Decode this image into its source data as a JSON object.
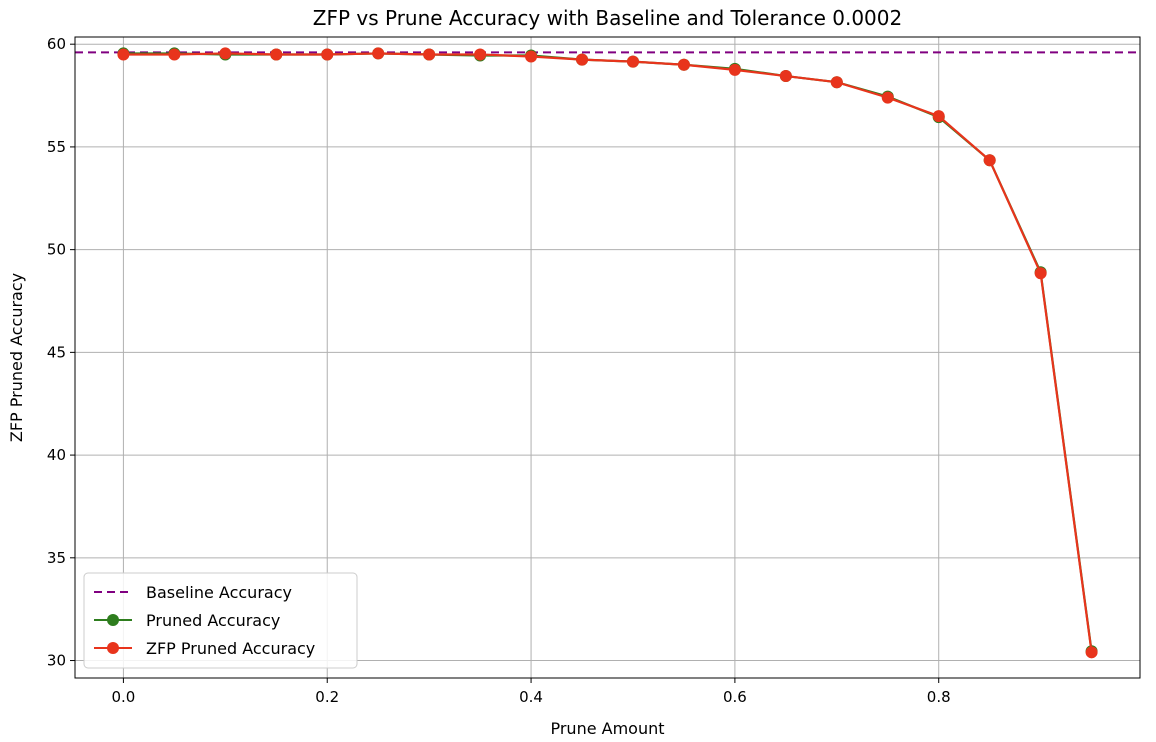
{
  "chart_data": {
    "type": "line",
    "title": "ZFP vs Prune Accuracy with Baseline and Tolerance 0.0002",
    "xlabel": "Prune Amount",
    "ylabel": "ZFP Pruned Accuracy",
    "xlim": [
      -0.0475,
      0.9975
    ],
    "ylim": [
      29.15,
      60.35
    ],
    "xticks": [
      0.0,
      0.2,
      0.4,
      0.6,
      0.8
    ],
    "xtick_labels": [
      "0.0",
      "0.2",
      "0.4",
      "0.6",
      "0.8"
    ],
    "yticks": [
      30,
      35,
      40,
      45,
      50,
      55,
      60
    ],
    "ytick_labels": [
      "30",
      "35",
      "40",
      "45",
      "50",
      "55",
      "60"
    ],
    "grid": true,
    "legend_position": "lower-left",
    "x": [
      0.0,
      0.05,
      0.1,
      0.15,
      0.2,
      0.25,
      0.3,
      0.35,
      0.4,
      0.45,
      0.5,
      0.55,
      0.6,
      0.65,
      0.7,
      0.75,
      0.8,
      0.85,
      0.9,
      0.95
    ],
    "baseline": {
      "name": "Baseline Accuracy",
      "value": 59.6,
      "color": "#800080",
      "style": "dashed"
    },
    "series": [
      {
        "name": "Pruned Accuracy",
        "color": "#2e7d1e",
        "values": [
          59.55,
          59.55,
          59.5,
          59.5,
          59.5,
          59.55,
          59.5,
          59.45,
          59.45,
          59.25,
          59.15,
          59.0,
          58.8,
          58.45,
          58.15,
          57.45,
          56.45,
          54.35,
          48.9,
          30.45
        ]
      },
      {
        "name": "ZFP Pruned Accuracy",
        "color": "#e8341c",
        "values": [
          59.5,
          59.5,
          59.55,
          59.5,
          59.5,
          59.55,
          59.5,
          59.5,
          59.4,
          59.25,
          59.15,
          59.0,
          58.75,
          58.45,
          58.15,
          57.4,
          56.5,
          54.35,
          48.85,
          30.4
        ]
      }
    ]
  }
}
